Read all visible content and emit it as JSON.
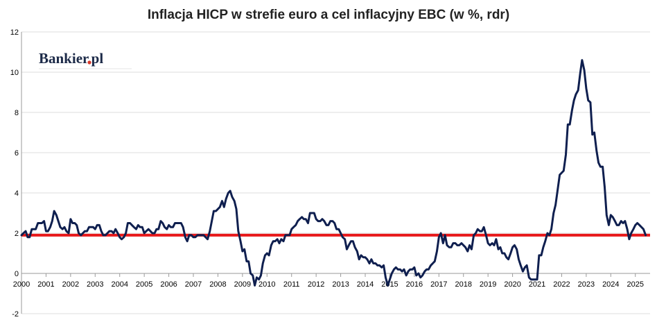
{
  "chart_data": {
    "type": "line",
    "title": "Inflacja HICP w strefie euro a cel inflacyjny EBC (w %, rdr)",
    "xlabel": "",
    "ylabel": "",
    "ylim": [
      -2,
      12
    ],
    "xlim": [
      2000,
      2025.6
    ],
    "yticks": [
      -2,
      0,
      2,
      4,
      6,
      8,
      10,
      12
    ],
    "xticks": [
      "2000",
      "2001",
      "2002",
      "2003",
      "2004",
      "2005",
      "2006",
      "2007",
      "2008",
      "2009",
      "2010",
      "2011",
      "2012",
      "2013",
      "2014",
      "2015",
      "2016",
      "2017",
      "2018",
      "2019",
      "2020",
      "2021",
      "2022",
      "2023",
      "2024",
      "2025"
    ],
    "grid": "horizontal",
    "logo": "Bankier.pl",
    "colors": {
      "series": "#0f1f4f",
      "target": "#e8191b"
    },
    "series": [
      {
        "name": "",
        "x": [
          2000.0,
          2000.08,
          2000.17,
          2000.25,
          2000.33,
          2000.42,
          2000.5,
          2000.58,
          2000.67,
          2000.75,
          2000.83,
          2000.92,
          2001.0,
          2001.08,
          2001.17,
          2001.25,
          2001.33,
          2001.42,
          2001.5,
          2001.58,
          2001.67,
          2001.75,
          2001.83,
          2001.92,
          2002.0,
          2002.08,
          2002.17,
          2002.25,
          2002.33,
          2002.42,
          2002.5,
          2002.58,
          2002.67,
          2002.75,
          2002.83,
          2002.92,
          2003.0,
          2003.08,
          2003.17,
          2003.25,
          2003.33,
          2003.42,
          2003.5,
          2003.58,
          2003.67,
          2003.75,
          2003.83,
          2003.92,
          2004.0,
          2004.08,
          2004.17,
          2004.25,
          2004.33,
          2004.42,
          2004.5,
          2004.58,
          2004.67,
          2004.75,
          2004.83,
          2004.92,
          2005.0,
          2005.08,
          2005.17,
          2005.25,
          2005.33,
          2005.42,
          2005.5,
          2005.58,
          2005.67,
          2005.75,
          2005.83,
          2005.92,
          2006.0,
          2006.08,
          2006.17,
          2006.25,
          2006.33,
          2006.42,
          2006.5,
          2006.58,
          2006.67,
          2006.75,
          2006.83,
          2006.92,
          2007.0,
          2007.08,
          2007.17,
          2007.25,
          2007.33,
          2007.42,
          2007.5,
          2007.58,
          2007.67,
          2007.75,
          2007.83,
          2007.92,
          2008.0,
          2008.08,
          2008.17,
          2008.25,
          2008.33,
          2008.42,
          2008.5,
          2008.58,
          2008.67,
          2008.75,
          2008.83,
          2008.92,
          2009.0,
          2009.08,
          2009.17,
          2009.25,
          2009.33,
          2009.42,
          2009.5,
          2009.58,
          2009.67,
          2009.75,
          2009.83,
          2009.92,
          2010.0,
          2010.08,
          2010.17,
          2010.25,
          2010.33,
          2010.42,
          2010.5,
          2010.58,
          2010.67,
          2010.75,
          2010.83,
          2010.92,
          2011.0,
          2011.08,
          2011.17,
          2011.25,
          2011.33,
          2011.42,
          2011.5,
          2011.58,
          2011.67,
          2011.75,
          2011.83,
          2011.92,
          2012.0,
          2012.08,
          2012.17,
          2012.25,
          2012.33,
          2012.42,
          2012.5,
          2012.58,
          2012.67,
          2012.75,
          2012.83,
          2012.92,
          2013.0,
          2013.08,
          2013.17,
          2013.25,
          2013.33,
          2013.42,
          2013.5,
          2013.58,
          2013.67,
          2013.75,
          2013.83,
          2013.92,
          2014.0,
          2014.08,
          2014.17,
          2014.25,
          2014.33,
          2014.42,
          2014.5,
          2014.58,
          2014.67,
          2014.75,
          2014.83,
          2014.92,
          2015.0,
          2015.08,
          2015.17,
          2015.25,
          2015.33,
          2015.42,
          2015.5,
          2015.58,
          2015.67,
          2015.75,
          2015.83,
          2015.92,
          2016.0,
          2016.08,
          2016.17,
          2016.25,
          2016.33,
          2016.42,
          2016.5,
          2016.58,
          2016.67,
          2016.75,
          2016.83,
          2016.92,
          2017.0,
          2017.08,
          2017.17,
          2017.25,
          2017.33,
          2017.42,
          2017.5,
          2017.58,
          2017.67,
          2017.75,
          2017.83,
          2017.92,
          2018.0,
          2018.08,
          2018.17,
          2018.25,
          2018.33,
          2018.42,
          2018.5,
          2018.58,
          2018.67,
          2018.75,
          2018.83,
          2018.92,
          2019.0,
          2019.08,
          2019.17,
          2019.25,
          2019.33,
          2019.42,
          2019.5,
          2019.58,
          2019.67,
          2019.75,
          2019.83,
          2019.92,
          2020.0,
          2020.08,
          2020.17,
          2020.25,
          2020.33,
          2020.42,
          2020.5,
          2020.58,
          2020.67,
          2020.75,
          2020.83,
          2020.92,
          2021.0,
          2021.08,
          2021.17,
          2021.25,
          2021.33,
          2021.42,
          2021.5,
          2021.58,
          2021.67,
          2021.75,
          2021.83,
          2021.92,
          2022.0,
          2022.08,
          2022.17,
          2022.25,
          2022.33,
          2022.42,
          2022.5,
          2022.58,
          2022.67,
          2022.75,
          2022.83,
          2022.92,
          2023.0,
          2023.08,
          2023.17,
          2023.25,
          2023.33,
          2023.42,
          2023.5,
          2023.58,
          2023.67,
          2023.75,
          2023.83,
          2023.92,
          2024.0,
          2024.08,
          2024.17,
          2024.25,
          2024.33,
          2024.42,
          2024.5,
          2024.58,
          2024.67,
          2024.75,
          2024.83,
          2024.92,
          2025.0,
          2025.08,
          2025.17,
          2025.25,
          2025.33,
          2025.42
        ],
        "values": [
          1.9,
          2.0,
          2.1,
          1.8,
          1.8,
          2.2,
          2.2,
          2.2,
          2.5,
          2.5,
          2.5,
          2.6,
          2.1,
          2.1,
          2.3,
          2.6,
          3.1,
          2.9,
          2.6,
          2.3,
          2.2,
          2.3,
          2.1,
          2.0,
          2.7,
          2.5,
          2.5,
          2.4,
          2.0,
          1.9,
          2.0,
          2.1,
          2.1,
          2.3,
          2.3,
          2.3,
          2.2,
          2.4,
          2.4,
          2.1,
          1.9,
          1.9,
          2.0,
          2.1,
          2.1,
          2.0,
          2.2,
          2.0,
          1.8,
          1.7,
          1.8,
          2.0,
          2.5,
          2.5,
          2.4,
          2.3,
          2.2,
          2.4,
          2.3,
          2.3,
          2.0,
          2.1,
          2.2,
          2.1,
          2.0,
          2.0,
          2.2,
          2.2,
          2.6,
          2.5,
          2.3,
          2.2,
          2.4,
          2.3,
          2.3,
          2.5,
          2.5,
          2.5,
          2.5,
          2.3,
          1.8,
          1.6,
          1.9,
          1.9,
          1.8,
          1.8,
          1.9,
          1.9,
          1.9,
          1.9,
          1.8,
          1.7,
          2.1,
          2.6,
          3.1,
          3.1,
          3.2,
          3.3,
          3.6,
          3.3,
          3.7,
          4.0,
          4.1,
          3.8,
          3.6,
          3.2,
          2.1,
          1.6,
          1.1,
          1.2,
          0.6,
          0.6,
          0.0,
          -0.1,
          -0.6,
          -0.2,
          -0.3,
          -0.1,
          0.5,
          0.9,
          1.0,
          0.9,
          1.4,
          1.6,
          1.6,
          1.7,
          1.5,
          1.7,
          1.6,
          1.9,
          1.9,
          1.9,
          2.2,
          2.3,
          2.4,
          2.6,
          2.7,
          2.8,
          2.7,
          2.7,
          2.5,
          3.0,
          3.0,
          3.0,
          2.7,
          2.6,
          2.6,
          2.7,
          2.6,
          2.4,
          2.4,
          2.6,
          2.6,
          2.5,
          2.2,
          2.2,
          2.0,
          1.8,
          1.7,
          1.2,
          1.4,
          1.6,
          1.6,
          1.3,
          1.1,
          0.7,
          0.9,
          0.8,
          0.8,
          0.7,
          0.5,
          0.7,
          0.5,
          0.5,
          0.4,
          0.4,
          0.3,
          0.4,
          -0.2,
          -0.6,
          -0.3,
          0.0,
          0.2,
          0.3,
          0.2,
          0.2,
          0.1,
          0.2,
          -0.1,
          0.1,
          0.2,
          0.2,
          0.3,
          -0.1,
          0.0,
          -0.2,
          -0.1,
          0.1,
          0.2,
          0.2,
          0.4,
          0.5,
          0.6,
          1.1,
          1.8,
          2.0,
          1.5,
          1.9,
          1.4,
          1.3,
          1.3,
          1.5,
          1.5,
          1.4,
          1.4,
          1.5,
          1.4,
          1.3,
          1.1,
          1.4,
          1.2,
          1.9,
          2.0,
          2.2,
          2.1,
          2.1,
          2.3,
          1.9,
          1.5,
          1.4,
          1.5,
          1.4,
          1.7,
          1.2,
          1.3,
          1.0,
          1.0,
          0.8,
          0.7,
          1.0,
          1.3,
          1.4,
          1.2,
          0.7,
          0.4,
          0.1,
          0.3,
          0.4,
          -0.2,
          -0.3,
          -0.3,
          -0.3,
          -0.3,
          0.9,
          0.9,
          1.3,
          1.6,
          2.0,
          1.9,
          2.2,
          3.0,
          3.4,
          4.1,
          4.9,
          5.0,
          5.1,
          5.9,
          7.4,
          7.4,
          8.1,
          8.6,
          8.9,
          9.1,
          9.9,
          10.6,
          10.1,
          9.2,
          8.6,
          8.5,
          6.9,
          7.0,
          6.1,
          5.5,
          5.3,
          5.3,
          4.3,
          2.9,
          2.4,
          2.9,
          2.8,
          2.6,
          2.4,
          2.4,
          2.6,
          2.5,
          2.6,
          2.2,
          1.7,
          2.0,
          2.2,
          2.4,
          2.5,
          2.4,
          2.3,
          2.2,
          1.9
        ]
      },
      {
        "name": "",
        "x": [
          2000,
          2025.6
        ],
        "values": [
          1.9,
          1.9
        ]
      }
    ]
  }
}
